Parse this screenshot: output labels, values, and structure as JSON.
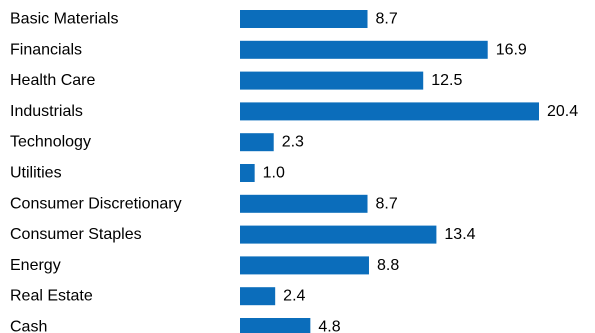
{
  "chart_data": {
    "type": "bar",
    "orientation": "horizontal",
    "categories": [
      "Basic Materials",
      "Financials",
      "Health Care",
      "Industrials",
      "Technology",
      "Utilities",
      "Consumer Discretionary",
      "Consumer Staples",
      "Energy",
      "Real Estate",
      "Cash"
    ],
    "values": [
      8.7,
      16.9,
      12.5,
      20.4,
      2.3,
      1.0,
      8.7,
      13.4,
      8.8,
      2.4,
      4.8
    ],
    "value_labels": [
      "8.7",
      "16.9",
      "12.5",
      "20.4",
      "2.3",
      "1.0",
      "8.7",
      "13.4",
      "8.8",
      "2.4",
      "4.8"
    ],
    "bar_color": "#0b6dbb",
    "grid": false,
    "legend": "none",
    "xlim": [
      0,
      20.4
    ]
  }
}
